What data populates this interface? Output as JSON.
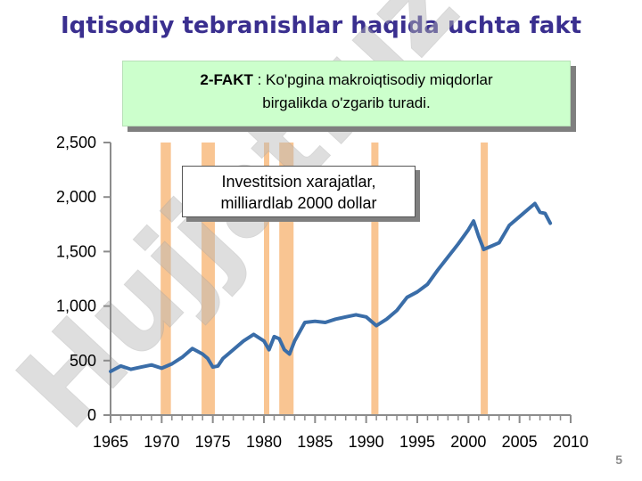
{
  "slide": {
    "title": "Iqtisodiy tebranishlar haqida uchta fakt",
    "fact_label": "2-FAKT",
    "fact_text_1": " : Ko'pgina makroiqtisodiy miqdorlar",
    "fact_text_2": "birgalikda o'zgarib turadi.",
    "page_number": "5",
    "watermark": "Hujjat.uz"
  },
  "colors": {
    "title": "#3a2f8f",
    "line": "#3a6da8",
    "recession": "#f9c592",
    "fact_box_bg": "#ccffcc"
  },
  "chart_data": {
    "type": "line",
    "legend_text_1": "Investitsion xarajatlar,",
    "legend_text_2": "milliardlab 2000 dollar",
    "xlim": [
      1965,
      2010
    ],
    "ylim": [
      0,
      2500
    ],
    "x_ticks": [
      1965,
      1970,
      1975,
      1980,
      1985,
      1990,
      1995,
      2000,
      2005,
      2010
    ],
    "x_tick_labels": [
      "1965",
      "1970",
      "1975",
      "1980",
      "1985",
      "1990",
      "1995",
      "2000",
      "2005",
      "2010"
    ],
    "y_ticks": [
      0,
      500,
      1000,
      1500,
      2000,
      2500
    ],
    "y_tick_labels": [
      "0",
      "500",
      "1,000",
      "1,500",
      "2,000",
      "2,500"
    ],
    "recessions": [
      [
        1969.9,
        1970.9
      ],
      [
        1973.9,
        1975.2
      ],
      [
        1980.0,
        1980.5
      ],
      [
        1981.5,
        1982.9
      ],
      [
        1990.5,
        1991.2
      ],
      [
        2001.2,
        2001.9
      ]
    ],
    "series": [
      {
        "x": [
          1965,
          1966,
          1967,
          1968,
          1969,
          1970,
          1971,
          1972,
          1973,
          1974,
          1974.5,
          1975,
          1975.5,
          1976,
          1977,
          1978,
          1979,
          1980,
          1980.5,
          1981,
          1981.5,
          1982,
          1982.5,
          1983,
          1984,
          1985,
          1986,
          1987,
          1988,
          1989,
          1990,
          1991,
          1992,
          1993,
          1994,
          1995,
          1996,
          1997,
          1998,
          1999,
          2000,
          2000.5,
          2001,
          2001.5,
          2002,
          2003,
          2004,
          2005,
          2006,
          2006.5,
          2007,
          2007.5,
          2008
        ],
        "values": [
          400,
          450,
          420,
          440,
          460,
          430,
          470,
          530,
          610,
          560,
          520,
          440,
          450,
          520,
          600,
          680,
          740,
          680,
          600,
          720,
          700,
          600,
          560,
          680,
          850,
          860,
          850,
          880,
          900,
          920,
          900,
          820,
          880,
          960,
          1080,
          1130,
          1200,
          1330,
          1450,
          1570,
          1700,
          1780,
          1640,
          1520,
          1540,
          1580,
          1740,
          1820,
          1900,
          1940,
          1860,
          1850,
          1760
        ]
      }
    ]
  }
}
